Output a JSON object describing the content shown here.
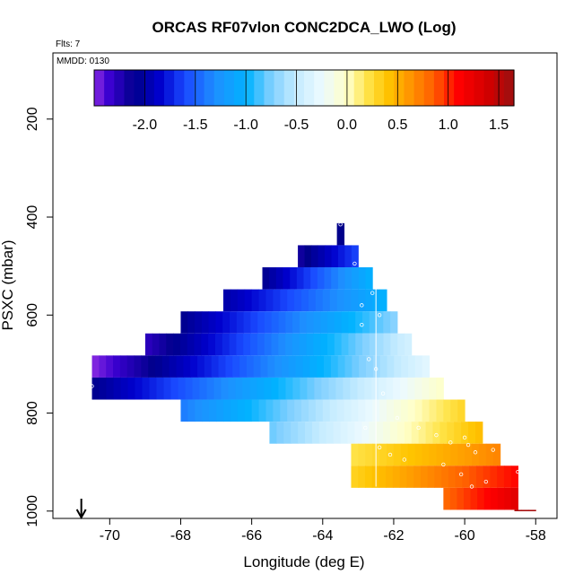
{
  "chart_data": {
    "type": "heatmap",
    "title": "ORCAS RF07vlon CONC2DCA_LWO (Log)",
    "flights_label": "Flts: 7",
    "date_label": "MMDD: 0130",
    "xlabel": "Longitude (deg E)",
    "ylabel": "PSXC (mbar)",
    "xlim": [
      -71.6,
      -57.4
    ],
    "ylim": [
      1015,
      65
    ],
    "x_ticks": [
      -70,
      -68,
      -66,
      -64,
      -62,
      -60,
      -58
    ],
    "x_tick_labels": [
      "-70",
      "-68",
      "-66",
      "-64",
      "-62",
      "-60",
      "-58"
    ],
    "y_ticks": [
      200,
      400,
      600,
      800,
      1000
    ],
    "y_tick_labels": [
      "200",
      "400",
      "600",
      "800",
      "1000"
    ],
    "colorbar": {
      "range": [
        -2.5,
        1.65
      ],
      "ticks": [
        -2.0,
        -1.5,
        -1.0,
        -0.5,
        0.0,
        0.5,
        1.0,
        1.5
      ],
      "tick_labels": [
        "-2.0",
        "-1.5",
        "-1.0",
        "-0.5",
        "0.0",
        "0.5",
        "1.0",
        "1.5"
      ]
    },
    "row_height_mbar": 45,
    "rows": [
      {
        "p": 435,
        "x0": -63.6,
        "x1": -63.4,
        "v0": -2.1,
        "v1": -2.1
      },
      {
        "p": 480,
        "x0": -64.7,
        "x1": -63.0,
        "v0": -2.2,
        "v1": -1.6
      },
      {
        "p": 525,
        "x0": -65.7,
        "x1": -62.6,
        "v0": -2.1,
        "v1": -1.0
      },
      {
        "p": 570,
        "x0": -66.8,
        "x1": -62.2,
        "v0": -2.0,
        "v1": -1.0
      },
      {
        "p": 615,
        "x0": -68.0,
        "x1": -61.9,
        "v0": -2.1,
        "v1": -0.7
      },
      {
        "p": 660,
        "x0": -69.0,
        "x1": -61.5,
        "v0": -2.3,
        "v1": -0.4
      },
      {
        "p": 705,
        "x0": -70.5,
        "x1": -61.0,
        "v0": -2.5,
        "v1": -0.3
      },
      {
        "p": 750,
        "x0": -70.5,
        "x1": -60.6,
        "v0": -2.1,
        "v1": 0.0
      },
      {
        "p": 795,
        "x0": -68.0,
        "x1": -60.0,
        "v0": -1.4,
        "v1": 0.3
      },
      {
        "p": 840,
        "x0": -65.5,
        "x1": -59.5,
        "v0": -0.8,
        "v1": 0.45
      },
      {
        "p": 885,
        "x0": -63.2,
        "x1": -59.0,
        "v0": 0.2,
        "v1": 0.7
      },
      {
        "p": 930,
        "x0": -63.2,
        "x1": -58.5,
        "v0": 0.3,
        "v1": 1.1
      },
      {
        "p": 975,
        "x0": -60.6,
        "x1": -58.5,
        "v0": 0.8,
        "v1": 1.3
      },
      {
        "p": 1020,
        "x0": -58.6,
        "x1": -58.0,
        "v0": 1.6,
        "v1": 1.6
      }
    ],
    "points": [
      {
        "x": -63.5,
        "p": 415
      },
      {
        "x": -63.1,
        "p": 495
      },
      {
        "x": -62.6,
        "p": 555
      },
      {
        "x": -62.9,
        "p": 580
      },
      {
        "x": -62.4,
        "p": 600
      },
      {
        "x": -62.9,
        "p": 620
      },
      {
        "x": -62.7,
        "p": 690
      },
      {
        "x": -62.5,
        "p": 710
      },
      {
        "x": -62.3,
        "p": 760
      },
      {
        "x": -61.9,
        "p": 810
      },
      {
        "x": -61.3,
        "p": 830
      },
      {
        "x": -60.8,
        "p": 845
      },
      {
        "x": -60.4,
        "p": 860
      },
      {
        "x": -60.0,
        "p": 850
      },
      {
        "x": -59.9,
        "p": 865
      },
      {
        "x": -59.7,
        "p": 880
      },
      {
        "x": -59.2,
        "p": 875
      },
      {
        "x": -62.1,
        "p": 885
      },
      {
        "x": -61.7,
        "p": 895
      },
      {
        "x": -60.6,
        "p": 905
      },
      {
        "x": -60.1,
        "p": 925
      },
      {
        "x": -59.4,
        "p": 940
      },
      {
        "x": -58.5,
        "p": 920
      },
      {
        "x": -59.8,
        "p": 950
      },
      {
        "x": -58.4,
        "p": 980
      },
      {
        "x": -58.2,
        "p": 980
      },
      {
        "x": -58.0,
        "p": 980
      },
      {
        "x": -70.4,
        "p": 675
      },
      {
        "x": -70.5,
        "p": 745
      },
      {
        "x": -62.8,
        "p": 830
      },
      {
        "x": -62.4,
        "p": 870
      }
    ],
    "vertical_line_x": -62.5,
    "arrow_x": -70.8
  }
}
